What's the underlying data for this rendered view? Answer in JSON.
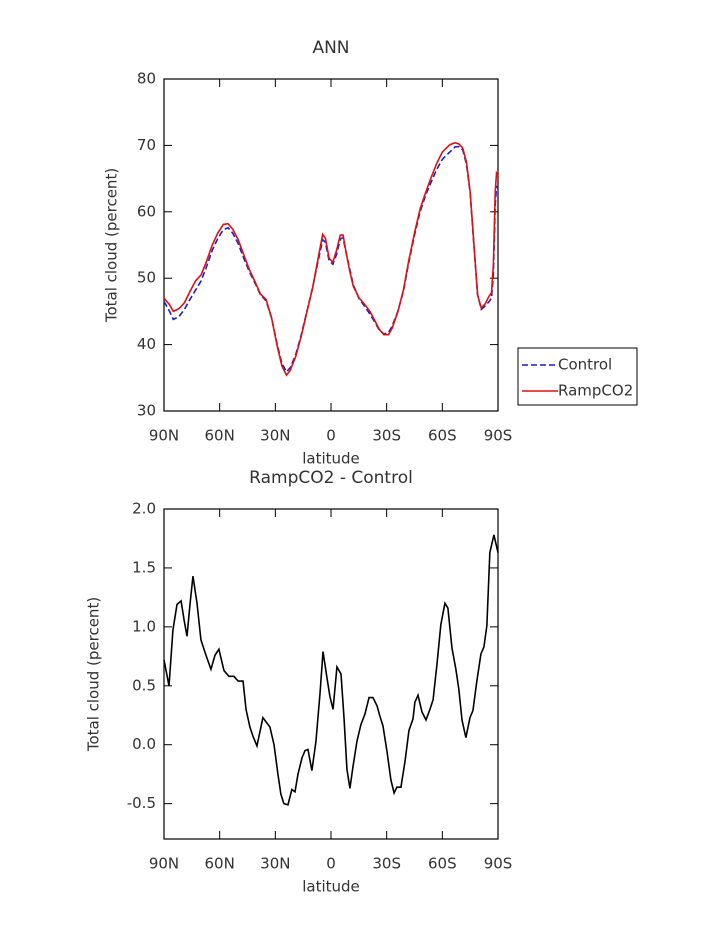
{
  "chart_data": [
    {
      "type": "line",
      "title": "ANN",
      "xlabel": "latitude",
      "ylabel": "Total cloud (percent)",
      "x": [
        90,
        87,
        85,
        82,
        79,
        76,
        73,
        70,
        67,
        64,
        61,
        58,
        55.5,
        53,
        50,
        47,
        44,
        41,
        38,
        35,
        32,
        29,
        26.5,
        24,
        22,
        19,
        16,
        13,
        10,
        7,
        4.5,
        3,
        1,
        -1,
        -3,
        -5,
        -6.5,
        -8,
        -10,
        -12,
        -15,
        -18,
        -21,
        -24,
        -26,
        -28.5,
        -31,
        -33,
        -36,
        -39,
        -42,
        -45,
        -48,
        -51,
        -54,
        -57,
        -60,
        -64,
        -67,
        -69,
        -71,
        -73,
        -75,
        -77,
        -79,
        -81,
        -83,
        -85,
        -86.5,
        -87.5,
        -88.5,
        -89.2,
        -90
      ],
      "xlim": [
        90,
        -90
      ],
      "xticks": [
        {
          "value": 90,
          "label": "90N"
        },
        {
          "value": 60,
          "label": "60N"
        },
        {
          "value": 30,
          "label": "30N"
        },
        0,
        {
          "value": -30,
          "label": "30S"
        },
        {
          "value": -60,
          "label": "60S"
        },
        {
          "value": -90,
          "label": "90S"
        }
      ],
      "ylim": [
        30,
        80
      ],
      "yticks": [
        30,
        40,
        50,
        60,
        70,
        80
      ],
      "legend": "right",
      "series": [
        {
          "name": "Control",
          "color": "#1c1cd0",
          "dash": true,
          "values": [
            46.5,
            45,
            43.8,
            44.2,
            45.3,
            46.8,
            48.2,
            49.6,
            51.8,
            54.2,
            56,
            57.3,
            57.6,
            56.8,
            55.2,
            53,
            51,
            49.3,
            47.5,
            46.6,
            44,
            40,
            37.2,
            35.9,
            36.5,
            38.5,
            41.5,
            45,
            48.5,
            52.5,
            55.8,
            55.4,
            52.6,
            52.1,
            53.6,
            55.9,
            56.1,
            54,
            51.5,
            49,
            47,
            45.8,
            44.6,
            43.2,
            42.2,
            41.6,
            41.8,
            42.8,
            45,
            48,
            52.5,
            56.5,
            60,
            62.5,
            64.5,
            66.4,
            67.9,
            69,
            69.8,
            69.8,
            69.3,
            67.2,
            62.8,
            55,
            47.5,
            45.3,
            45.8,
            46.4,
            47,
            50.5,
            61,
            63.8,
            63.5
          ]
        },
        {
          "name": "RampCO2",
          "color": "#e01010",
          "dash": false,
          "values": [
            47,
            46,
            45,
            45.4,
            46.3,
            48,
            49.6,
            50.5,
            52.6,
            55,
            56.8,
            58.1,
            58.2,
            57.4,
            55.8,
            53.5,
            51.3,
            49.5,
            47.6,
            46.8,
            44,
            39.8,
            36.8,
            35.4,
            36.1,
            38.2,
            41.3,
            44.9,
            48.4,
            52.9,
            56.6,
            56,
            53,
            52.4,
            54.2,
            56.5,
            56.5,
            54.1,
            51.2,
            48.8,
            47.1,
            46.1,
            45,
            43.4,
            42.3,
            41.5,
            41.5,
            42.5,
            44.9,
            48.2,
            52.8,
            56.8,
            60.4,
            62.9,
            65.2,
            67.3,
            69,
            70.1,
            70.4,
            70.2,
            69.6,
            67.5,
            63,
            55.2,
            47.5,
            45.5,
            46.1,
            47.2,
            47.8,
            52,
            63,
            65.8,
            65.4
          ]
        }
      ]
    },
    {
      "type": "line",
      "title": "RampCO2 - Control",
      "xlabel": "latitude",
      "ylabel": "Total cloud (percent)",
      "x": [
        90,
        87.3,
        85.2,
        83,
        80.8,
        79.2,
        77.6,
        76,
        74.4,
        72.2,
        70.1,
        67.4,
        64.7,
        62.5,
        60.4,
        57.7,
        55,
        52.3,
        50.1,
        47.4,
        45.8,
        43.7,
        42,
        39.9,
        36.7,
        32.9,
        30.7,
        28.6,
        27,
        25.4,
        23.2,
        21.1,
        19.4,
        17.8,
        15.6,
        14,
        12.4,
        10.3,
        8.1,
        5.9,
        4.3,
        2.2,
        0.6,
        -1.1,
        -3.2,
        -5.4,
        -7,
        -8.6,
        -10.2,
        -11.8,
        -14,
        -16.1,
        -18.3,
        -20.5,
        -22.6,
        -24.8,
        -26.4,
        -28,
        -30.2,
        -32.3,
        -34,
        -35.5,
        -37.7,
        -39.9,
        -42,
        -44.2,
        -45.2,
        -46.9,
        -49,
        -51.2,
        -53.3,
        -55,
        -57.1,
        -59.2,
        -61.4,
        -63,
        -65.2,
        -67.3,
        -68.9,
        -70.6,
        -72.7,
        -74.9,
        -76.5,
        -78.6,
        -80.8,
        -82.4,
        -84,
        -85.6,
        -87.8,
        -90
      ],
      "values": [
        0.72,
        0.5,
        0.97,
        1.19,
        1.22,
        1.06,
        0.92,
        1.19,
        1.43,
        1.2,
        0.89,
        0.76,
        0.64,
        0.76,
        0.81,
        0.63,
        0.58,
        0.58,
        0.54,
        0.54,
        0.3,
        0.15,
        0.07,
        -0.01,
        0.23,
        0.15,
        0,
        -0.25,
        -0.42,
        -0.5,
        -0.51,
        -0.38,
        -0.4,
        -0.25,
        -0.11,
        -0.05,
        -0.04,
        -0.22,
        0.03,
        0.44,
        0.79,
        0.57,
        0.41,
        0.3,
        0.66,
        0.6,
        0.23,
        -0.21,
        -0.37,
        -0.19,
        0.03,
        0.17,
        0.26,
        0.4,
        0.4,
        0.33,
        0.24,
        0.16,
        -0.06,
        -0.3,
        -0.41,
        -0.36,
        -0.36,
        -0.14,
        0.12,
        0.22,
        0.36,
        0.42,
        0.28,
        0.21,
        0.3,
        0.38,
        0.68,
        1.02,
        1.2,
        1.16,
        0.82,
        0.64,
        0.47,
        0.21,
        0.06,
        0.23,
        0.29,
        0.54,
        0.77,
        0.83,
        1.01,
        1.63,
        1.78,
        1.63
      ],
      "color": "#000000",
      "xlim": [
        90,
        -90
      ],
      "xticks": [
        {
          "value": 90,
          "label": "90N"
        },
        {
          "value": 60,
          "label": "60N"
        },
        {
          "value": 30,
          "label": "30N"
        },
        0,
        {
          "value": -30,
          "label": "30S"
        },
        {
          "value": -60,
          "label": "60S"
        },
        {
          "value": -90,
          "label": "90S"
        }
      ],
      "ylim": [
        -0.8,
        2.0
      ],
      "yticks": [
        -0.5,
        {
          "value": 0,
          "label": "0.0"
        },
        0.5,
        {
          "value": 1,
          "label": "1.0"
        },
        1.5,
        {
          "value": 2,
          "label": "2.0"
        }
      ]
    }
  ]
}
